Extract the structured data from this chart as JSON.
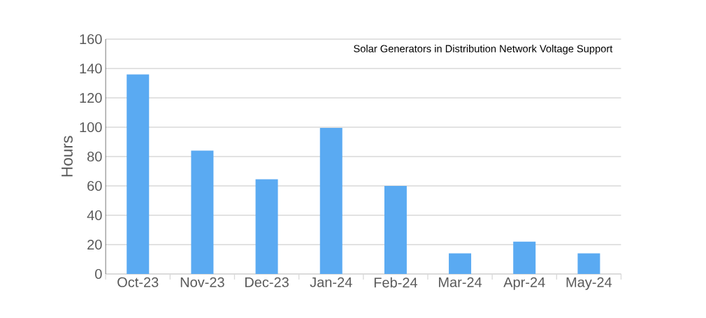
{
  "chart_data": {
    "type": "bar",
    "ylabel": "Hours",
    "categories": [
      "Oct-23",
      "Nov-23",
      "Dec-23",
      "Jan-24",
      "Feb-24",
      "Mar-24",
      "Apr-24",
      "May-24"
    ],
    "values": [
      136,
      84,
      64.5,
      99.5,
      60,
      14,
      22,
      14
    ],
    "color": "#5aaaf2",
    "ylim": [
      0,
      160
    ],
    "yticks": [
      0,
      20,
      40,
      60,
      80,
      100,
      120,
      140,
      160
    ],
    "grid": "y",
    "annotations": [
      "Solar Generators in Distribution Network Voltage Support"
    ]
  }
}
